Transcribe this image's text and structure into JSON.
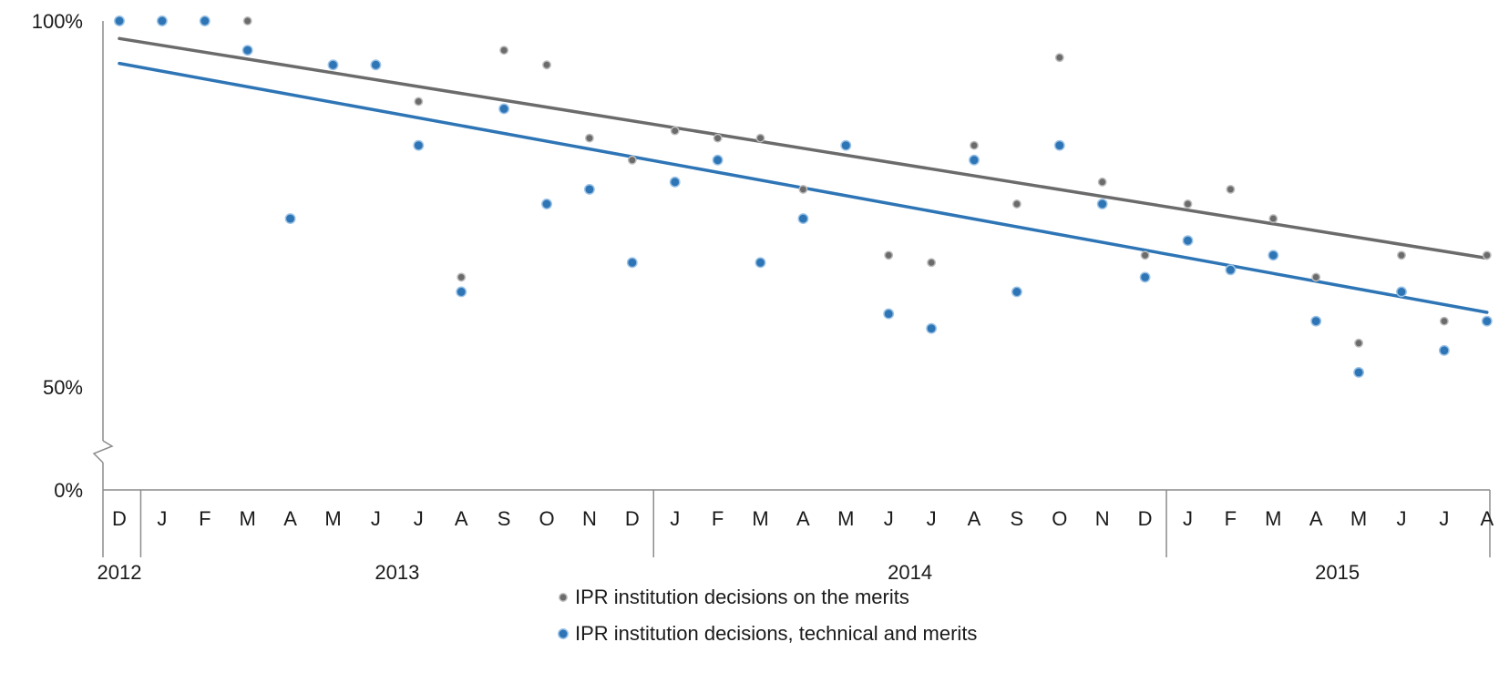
{
  "chart_data": {
    "type": "scatter",
    "title": "",
    "xlabel": "",
    "ylabel": "",
    "y_ticks": [
      "100%",
      "50%",
      "0%"
    ],
    "ylim": [
      0,
      100
    ],
    "y_axis_break": true,
    "months": [
      "D",
      "J",
      "F",
      "M",
      "A",
      "M",
      "J",
      "J",
      "A",
      "S",
      "O",
      "N",
      "D",
      "J",
      "F",
      "M",
      "A",
      "M",
      "J",
      "J",
      "A",
      "S",
      "O",
      "N",
      "D",
      "J",
      "F",
      "M",
      "A",
      "M",
      "J",
      "J",
      "A"
    ],
    "years": [
      {
        "label": "2012",
        "start": 0,
        "end": 0
      },
      {
        "label": "2013",
        "start": 1,
        "end": 12
      },
      {
        "label": "2014",
        "start": 13,
        "end": 24
      },
      {
        "label": "2015",
        "start": 25,
        "end": 32
      }
    ],
    "series": [
      {
        "name": "IPR institution decisions on the merits",
        "color": "#6b6b6b",
        "values": [
          100,
          100,
          100,
          100,
          null,
          94,
          94,
          89,
          65,
          96,
          94,
          84,
          81,
          85,
          84,
          84,
          77,
          83,
          68,
          67,
          83,
          75,
          95,
          78,
          68,
          75,
          77,
          73,
          65,
          56,
          68,
          59,
          68
        ],
        "trend": [
          97.6,
          67.6
        ]
      },
      {
        "name": "IPR institution decisions, technical and merits",
        "color": "#2e75b6",
        "values": [
          100,
          100,
          100,
          96,
          73,
          94,
          94,
          83,
          63,
          88,
          75,
          77,
          67,
          78,
          81,
          67,
          73,
          83,
          60,
          58,
          81,
          63,
          83,
          75,
          65,
          70,
          66,
          68,
          59,
          52,
          63,
          55,
          59
        ],
        "trend": [
          94.2,
          60.2
        ]
      }
    ]
  },
  "legend": {
    "items": [
      {
        "label": "IPR institution decisions on the merits",
        "color": "#6b6b6b"
      },
      {
        "label": "IPR institution decisions, technical and merits",
        "color": "#2e75b6"
      }
    ]
  }
}
